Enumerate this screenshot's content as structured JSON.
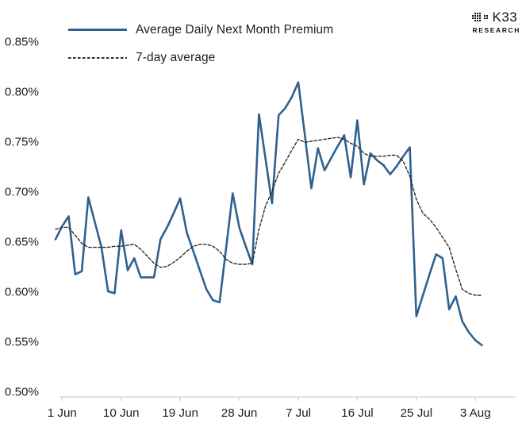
{
  "logo": {
    "brand": "K33",
    "sub": "RESEARCH",
    "dots": [
      "0111000",
      "1111011",
      "1111011",
      "0111000"
    ]
  },
  "colors": {
    "line_blue": "#2f618e",
    "line_dashed": "#2b2b2b",
    "axis_line": "#d8d8d8",
    "text": "#1c1c28"
  },
  "chart_data": {
    "type": "line",
    "title": "",
    "xlabel": "",
    "ylabel": "",
    "unit": "%",
    "grid": false,
    "legend_position": "top-left",
    "ylim": [
      0.5,
      0.85
    ],
    "x": [
      "31 May",
      "1 Jun",
      "2 Jun",
      "3 Jun",
      "4 Jun",
      "5 Jun",
      "6 Jun",
      "7 Jun",
      "8 Jun",
      "9 Jun",
      "10 Jun",
      "11 Jun",
      "12 Jun",
      "13 Jun",
      "14 Jun",
      "15 Jun",
      "16 Jun",
      "17 Jun",
      "18 Jun",
      "19 Jun",
      "20 Jun",
      "21 Jun",
      "22 Jun",
      "23 Jun",
      "24 Jun",
      "25 Jun",
      "26 Jun",
      "27 Jun",
      "28 Jun",
      "29 Jun",
      "30 Jun",
      "1 Jul",
      "2 Jul",
      "3 Jul",
      "4 Jul",
      "5 Jul",
      "6 Jul",
      "7 Jul",
      "8 Jul",
      "9 Jul",
      "10 Jul",
      "11 Jul",
      "12 Jul",
      "13 Jul",
      "14 Jul",
      "15 Jul",
      "16 Jul",
      "17 Jul",
      "18 Jul",
      "19 Jul",
      "20 Jul",
      "21 Jul",
      "22 Jul",
      "23 Jul",
      "24 Jul",
      "25 Jul",
      "26 Jul",
      "27 Jul",
      "28 Jul",
      "29 Jul",
      "30 Jul",
      "31 Jul",
      "1 Aug",
      "2 Aug",
      "3 Aug",
      "4 Aug"
    ],
    "x_ticks": [
      {
        "index": 1,
        "label": "1 Jun"
      },
      {
        "index": 10,
        "label": "10 Jun"
      },
      {
        "index": 19,
        "label": "19 Jun"
      },
      {
        "index": 28,
        "label": "28 Jun"
      },
      {
        "index": 37,
        "label": "7 Jul"
      },
      {
        "index": 46,
        "label": "16 Jul"
      },
      {
        "index": 55,
        "label": "25 Jul"
      },
      {
        "index": 64,
        "label": "3 Aug"
      }
    ],
    "y_ticks": [
      {
        "value": 0.85,
        "label": "0.85%"
      },
      {
        "value": 0.8,
        "label": "0.80%"
      },
      {
        "value": 0.75,
        "label": "0.75%"
      },
      {
        "value": 0.7,
        "label": "0.70%"
      },
      {
        "value": 0.65,
        "label": "0.65%"
      },
      {
        "value": 0.6,
        "label": "0.60%"
      },
      {
        "value": 0.55,
        "label": "0.55%"
      },
      {
        "value": 0.5,
        "label": "0.50%"
      }
    ],
    "series": [
      {
        "name": "Average Daily Next Month Premium",
        "style": "solid",
        "color": "#2f618e",
        "values": [
          0.652,
          0.665,
          0.675,
          0.617,
          0.62,
          0.694,
          0.669,
          0.644,
          0.6,
          0.598,
          0.661,
          0.621,
          0.633,
          0.614,
          0.614,
          0.614,
          0.652,
          0.664,
          0.678,
          0.693,
          0.659,
          0.64,
          0.621,
          0.602,
          0.591,
          0.589,
          0.643,
          0.698,
          0.664,
          0.645,
          0.627,
          0.777,
          0.733,
          0.688,
          0.776,
          0.783,
          0.794,
          0.809,
          0.756,
          0.703,
          0.743,
          0.721,
          0.733,
          0.745,
          0.756,
          0.714,
          0.771,
          0.707,
          0.738,
          0.731,
          0.726,
          0.717,
          0.725,
          0.735,
          0.744,
          0.575,
          0.596,
          0.617,
          0.637,
          0.633,
          0.582,
          0.595,
          0.57,
          0.559,
          0.551,
          0.546
        ]
      },
      {
        "name": "7-day average",
        "style": "dashed",
        "color": "#2b2b2b",
        "values": [
          0.662,
          0.664,
          0.664,
          0.656,
          0.648,
          0.644,
          0.644,
          0.644,
          0.644,
          0.645,
          0.645,
          0.646,
          0.647,
          0.642,
          0.635,
          0.628,
          0.624,
          0.625,
          0.629,
          0.634,
          0.64,
          0.645,
          0.647,
          0.647,
          0.645,
          0.64,
          0.632,
          0.628,
          0.627,
          0.627,
          0.628,
          0.662,
          0.685,
          0.7,
          0.718,
          0.729,
          0.741,
          0.752,
          0.749,
          0.75,
          0.751,
          0.752,
          0.753,
          0.754,
          0.752,
          0.748,
          0.745,
          0.738,
          0.735,
          0.735,
          0.735,
          0.736,
          0.736,
          0.73,
          0.715,
          0.692,
          0.678,
          0.672,
          0.664,
          0.654,
          0.644,
          0.622,
          0.602,
          0.598,
          0.596,
          0.596
        ]
      }
    ]
  }
}
